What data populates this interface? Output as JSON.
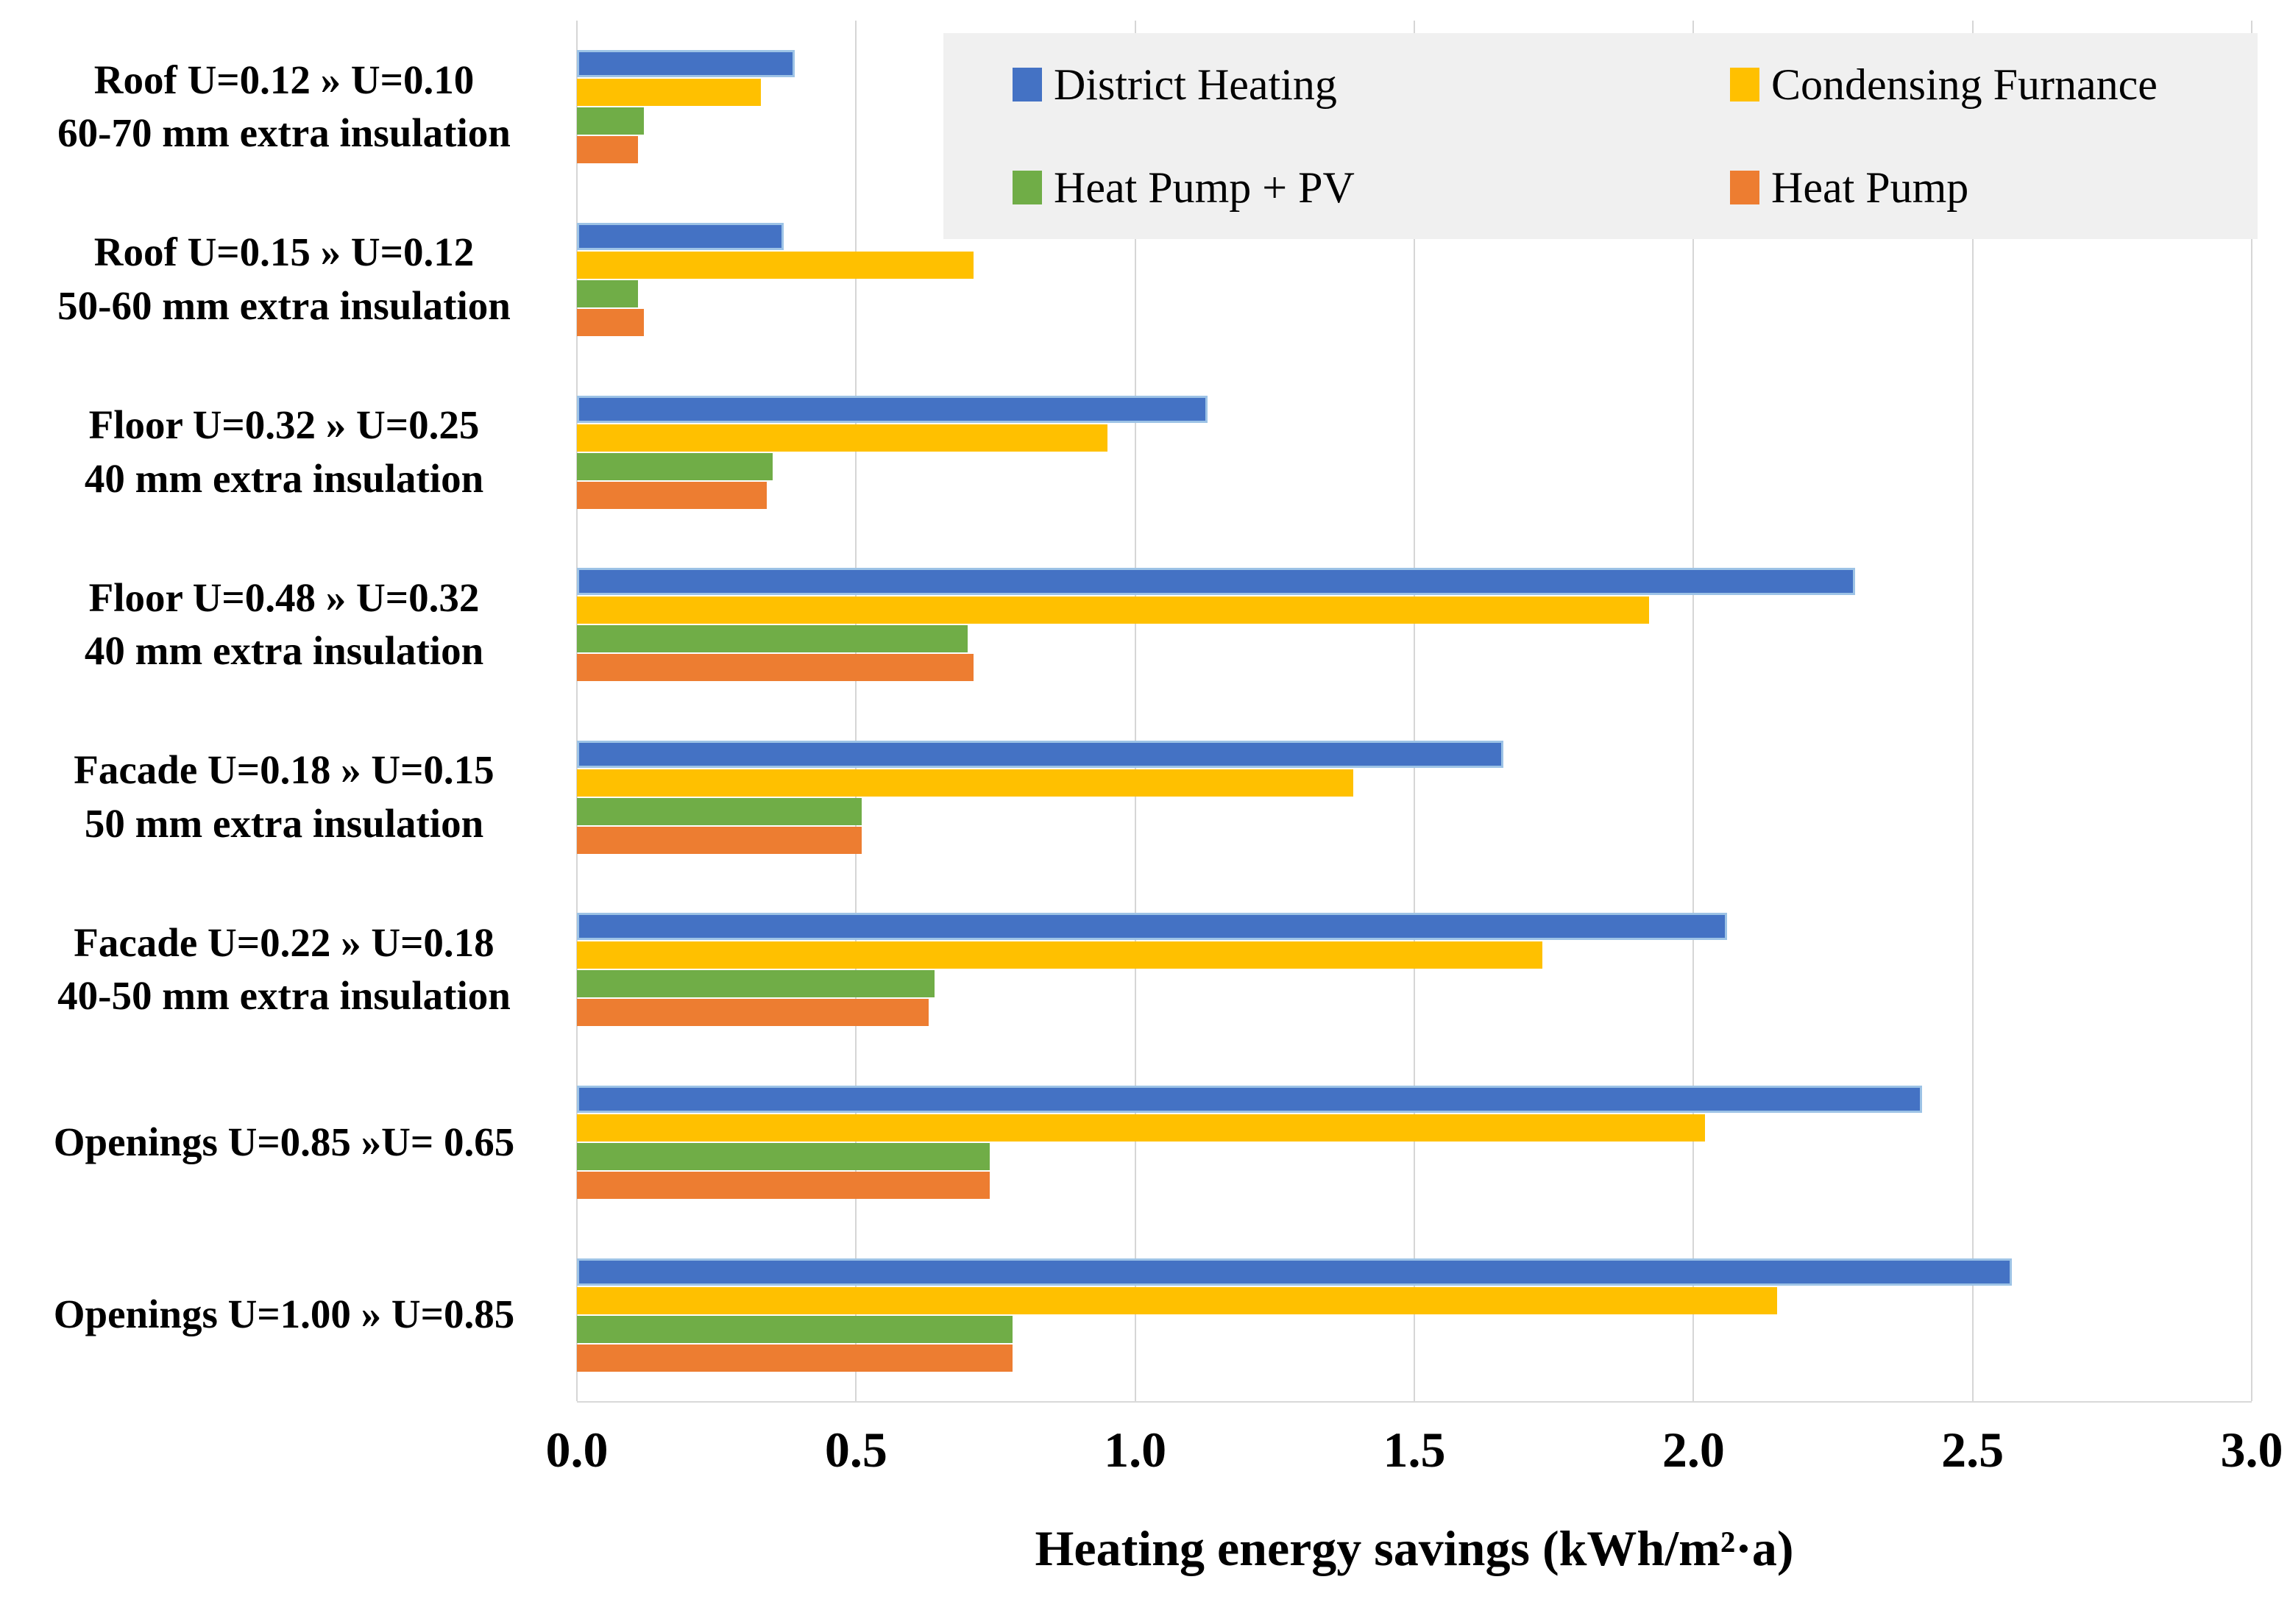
{
  "chart_data": {
    "type": "bar",
    "orientation": "horizontal",
    "xlabel": "Heating energy savings (kWh/m²·a)",
    "xlim": [
      0,
      3
    ],
    "xticks": [
      "0.0",
      "0.5",
      "1.0",
      "1.5",
      "2.0",
      "2.5",
      "3.0"
    ],
    "grid": true,
    "legend_position": "top-right",
    "categories": [
      {
        "lines": [
          "Roof U=0.12 » U=0.10",
          "60-70 mm extra insulation"
        ]
      },
      {
        "lines": [
          "Roof U=0.15 » U=0.12",
          "50-60 mm extra insulation"
        ]
      },
      {
        "lines": [
          "Floor U=0.32 » U=0.25",
          "40 mm extra insulation"
        ]
      },
      {
        "lines": [
          "Floor U=0.48 » U=0.32",
          "40 mm extra insulation"
        ]
      },
      {
        "lines": [
          "Facade U=0.18 » U=0.15",
          "50 mm extra insulation"
        ]
      },
      {
        "lines": [
          "Facade U=0.22 » U=0.18",
          "40-50 mm extra insulation"
        ]
      },
      {
        "lines": [
          "Openings U=0.85 »U= 0.65"
        ]
      },
      {
        "lines": [
          "Openings U=1.00 » U=0.85"
        ]
      }
    ],
    "series": [
      {
        "name": "District Heating",
        "color": "#4472C4",
        "edge": "#9DC3E6",
        "values": [
          0.39,
          0.37,
          1.13,
          2.29,
          1.66,
          2.06,
          2.41,
          2.57
        ]
      },
      {
        "name": "Condensing Furnance",
        "color": "#FFC000",
        "edge": null,
        "values": [
          0.33,
          0.71,
          0.95,
          1.92,
          1.39,
          1.73,
          2.02,
          2.15
        ]
      },
      {
        "name": "Heat Pump + PV",
        "color": "#70AD47",
        "edge": null,
        "values": [
          0.12,
          0.11,
          0.35,
          0.7,
          0.51,
          0.64,
          0.74,
          0.78
        ]
      },
      {
        "name": "Heat Pump",
        "color": "#ED7D31",
        "edge": null,
        "values": [
          0.11,
          0.12,
          0.34,
          0.71,
          0.51,
          0.63,
          0.74,
          0.78
        ]
      }
    ]
  },
  "colors": {
    "gridline": "#D6D6D6",
    "legend_bg": "#F0F0F0",
    "background": "#FFFFFF",
    "text": "#000000"
  }
}
